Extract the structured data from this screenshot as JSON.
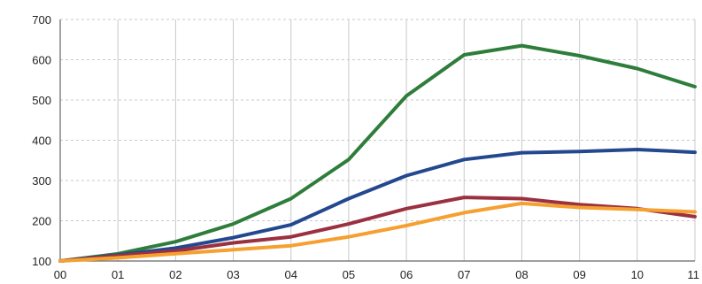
{
  "chart_data": {
    "type": "line",
    "title": "",
    "xlabel": "",
    "ylabel": "",
    "categories": [
      "00",
      "01",
      "02",
      "03",
      "04",
      "05",
      "06",
      "07",
      "08",
      "09",
      "10",
      "11"
    ],
    "ylim": [
      100,
      700
    ],
    "yticks": [
      100,
      200,
      300,
      400,
      500,
      600,
      700
    ],
    "grid": true,
    "legend": "none",
    "series": [
      {
        "color": "#2e7d3a",
        "values": [
          100,
          118,
          148,
          192,
          255,
          352,
          510,
          612,
          635,
          610,
          578,
          533
        ]
      },
      {
        "color": "#24488f",
        "values": [
          100,
          115,
          132,
          158,
          190,
          255,
          312,
          352,
          369,
          372,
          377,
          370
        ]
      },
      {
        "color": "#9b3040",
        "values": [
          100,
          113,
          125,
          145,
          160,
          192,
          230,
          258,
          255,
          240,
          230,
          210
        ]
      },
      {
        "color": "#f5a030",
        "values": [
          100,
          108,
          118,
          128,
          138,
          160,
          188,
          220,
          243,
          233,
          228,
          222
        ]
      }
    ]
  }
}
